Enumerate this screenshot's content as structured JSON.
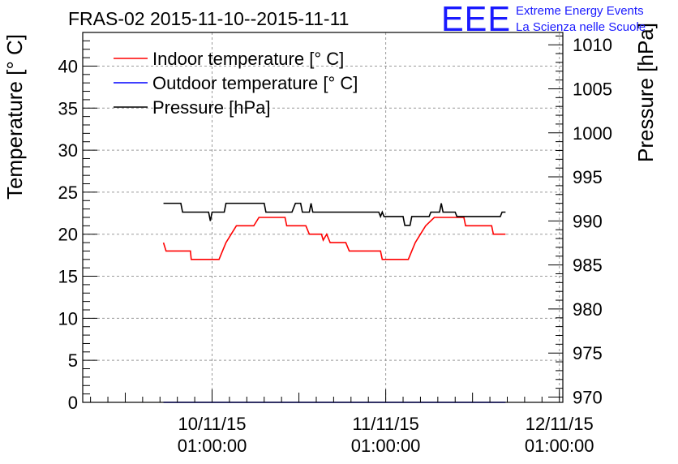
{
  "chart_data": {
    "type": "line",
    "title": "FRAS-02 2015-11-10--2015-11-11",
    "xlabel": "",
    "ylabel": "Temperature [° C]",
    "y2label": "Pressure [hPa]",
    "x_ticks": [
      {
        "x": 1.0,
        "line1": "10/11/15",
        "line2": "01:00:00"
      },
      {
        "x": 2.0,
        "line1": "11/11/15",
        "line2": "01:00:00"
      },
      {
        "x": 3.0,
        "line1": "12/11/15",
        "line2": "01:00:00"
      }
    ],
    "xlim": [
      0.255,
      3.02
    ],
    "ylim": [
      0,
      44
    ],
    "y_ticks": [
      0,
      5,
      10,
      15,
      20,
      25,
      30,
      35,
      40
    ],
    "y2lim": [
      969.4,
      1011.4
    ],
    "y2_ticks": [
      970,
      975,
      980,
      985,
      990,
      995,
      1000,
      1005,
      1010
    ],
    "series": [
      {
        "name": "Indoor temperature [° C]",
        "axis": "left",
        "color": "#ff0000",
        "points": [
          [
            0.72,
            19.0
          ],
          [
            0.735,
            18.0
          ],
          [
            0.875,
            18.0
          ],
          [
            0.88,
            17.0
          ],
          [
            1.04,
            17.0
          ],
          [
            1.06,
            18.0
          ],
          [
            1.08,
            19.0
          ],
          [
            1.11,
            20.0
          ],
          [
            1.14,
            21.0
          ],
          [
            1.24,
            21.0
          ],
          [
            1.27,
            22.0
          ],
          [
            1.42,
            22.0
          ],
          [
            1.43,
            21.0
          ],
          [
            1.54,
            21.0
          ],
          [
            1.56,
            20.0
          ],
          [
            1.63,
            20.0
          ],
          [
            1.64,
            19.3
          ],
          [
            1.66,
            20.0
          ],
          [
            1.68,
            19.0
          ],
          [
            1.77,
            19.0
          ],
          [
            1.79,
            18.0
          ],
          [
            1.97,
            18.0
          ],
          [
            1.98,
            17.0
          ],
          [
            2.13,
            17.0
          ],
          [
            2.15,
            18.0
          ],
          [
            2.17,
            19.0
          ],
          [
            2.2,
            20.0
          ],
          [
            2.23,
            21.0
          ],
          [
            2.28,
            22.0
          ],
          [
            2.45,
            22.0
          ],
          [
            2.46,
            21.0
          ],
          [
            2.61,
            21.0
          ],
          [
            2.62,
            20.0
          ],
          [
            2.69,
            20.0
          ]
        ]
      },
      {
        "name": "Outdoor temperature [° C]",
        "axis": "left",
        "color": "#0000ff",
        "points": [
          [
            0.72,
            0.0
          ],
          [
            2.69,
            0.0
          ]
        ]
      },
      {
        "name": "Pressure [hPa]",
        "axis": "right",
        "color": "#000000",
        "points": [
          [
            0.72,
            992.0
          ],
          [
            0.82,
            992.0
          ],
          [
            0.83,
            991.0
          ],
          [
            0.98,
            991.0
          ],
          [
            0.99,
            990.0
          ],
          [
            1.0,
            991.0
          ],
          [
            1.07,
            991.0
          ],
          [
            1.08,
            992.0
          ],
          [
            1.3,
            992.0
          ],
          [
            1.31,
            991.0
          ],
          [
            1.46,
            991.0
          ],
          [
            1.48,
            992.0
          ],
          [
            1.51,
            992.0
          ],
          [
            1.52,
            991.0
          ],
          [
            1.56,
            991.0
          ],
          [
            1.57,
            992.0
          ],
          [
            1.58,
            991.0
          ],
          [
            1.96,
            991.0
          ],
          [
            1.97,
            990.5
          ],
          [
            1.98,
            991.0
          ],
          [
            1.99,
            990.5
          ],
          [
            2.0,
            990.5
          ],
          [
            2.1,
            990.5
          ],
          [
            2.11,
            989.5
          ],
          [
            2.14,
            989.5
          ],
          [
            2.15,
            990.5
          ],
          [
            2.25,
            990.5
          ],
          [
            2.26,
            991.0
          ],
          [
            2.31,
            991.0
          ],
          [
            2.32,
            992.0
          ],
          [
            2.33,
            991.0
          ],
          [
            2.4,
            991.0
          ],
          [
            2.41,
            990.5
          ],
          [
            2.66,
            990.5
          ],
          [
            2.67,
            991.0
          ],
          [
            2.69,
            991.0
          ]
        ]
      }
    ],
    "legend": {
      "placement": "top-left"
    },
    "grid": true
  },
  "logo": {
    "mark": "EEE",
    "line1": "Extreme Energy Events",
    "line2": "La Scienza nelle Scuole"
  }
}
